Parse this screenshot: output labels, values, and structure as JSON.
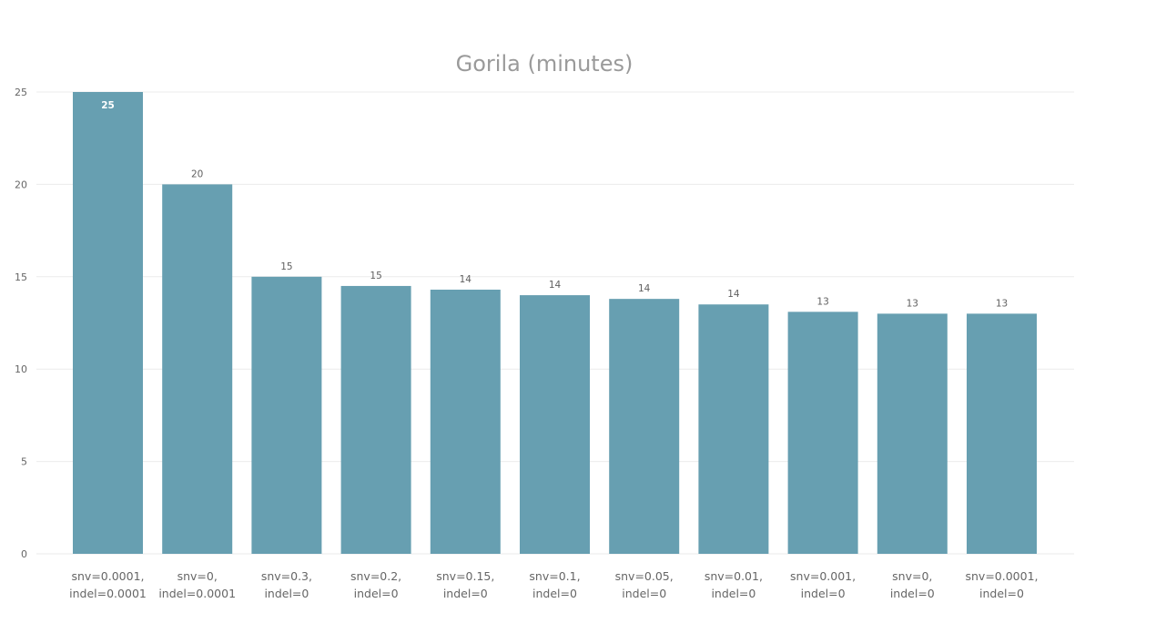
{
  "chart_data": {
    "type": "bar",
    "title": "Gorila (minutes)",
    "xlabel": "",
    "ylabel": "",
    "categories": [
      [
        "snv=0.0001,",
        "indel=0.0001"
      ],
      [
        "snv=0,",
        "indel=0.0001"
      ],
      [
        "snv=0.3,",
        "indel=0"
      ],
      [
        "snv=0.2,",
        "indel=0"
      ],
      [
        "snv=0.15,",
        "indel=0"
      ],
      [
        "snv=0.1,",
        "indel=0"
      ],
      [
        "snv=0.05,",
        "indel=0"
      ],
      [
        "snv=0.01,",
        "indel=0"
      ],
      [
        "snv=0.001,",
        "indel=0"
      ],
      [
        "snv=0,",
        "indel=0"
      ],
      [
        "snv=0.0001,",
        "indel=0"
      ]
    ],
    "values": [
      25,
      20,
      15,
      14.5,
      14.3,
      14,
      13.8,
      13.5,
      13.1,
      13,
      13
    ],
    "data_labels": [
      "25",
      "20",
      "15",
      "15",
      "14",
      "14",
      "14",
      "14",
      "13",
      "13",
      "13"
    ],
    "ylim": [
      0,
      25
    ],
    "yticks": [
      0,
      5,
      10,
      15,
      20,
      25
    ],
    "grid": true,
    "legend": "none",
    "bar_color": "#679fb1"
  }
}
